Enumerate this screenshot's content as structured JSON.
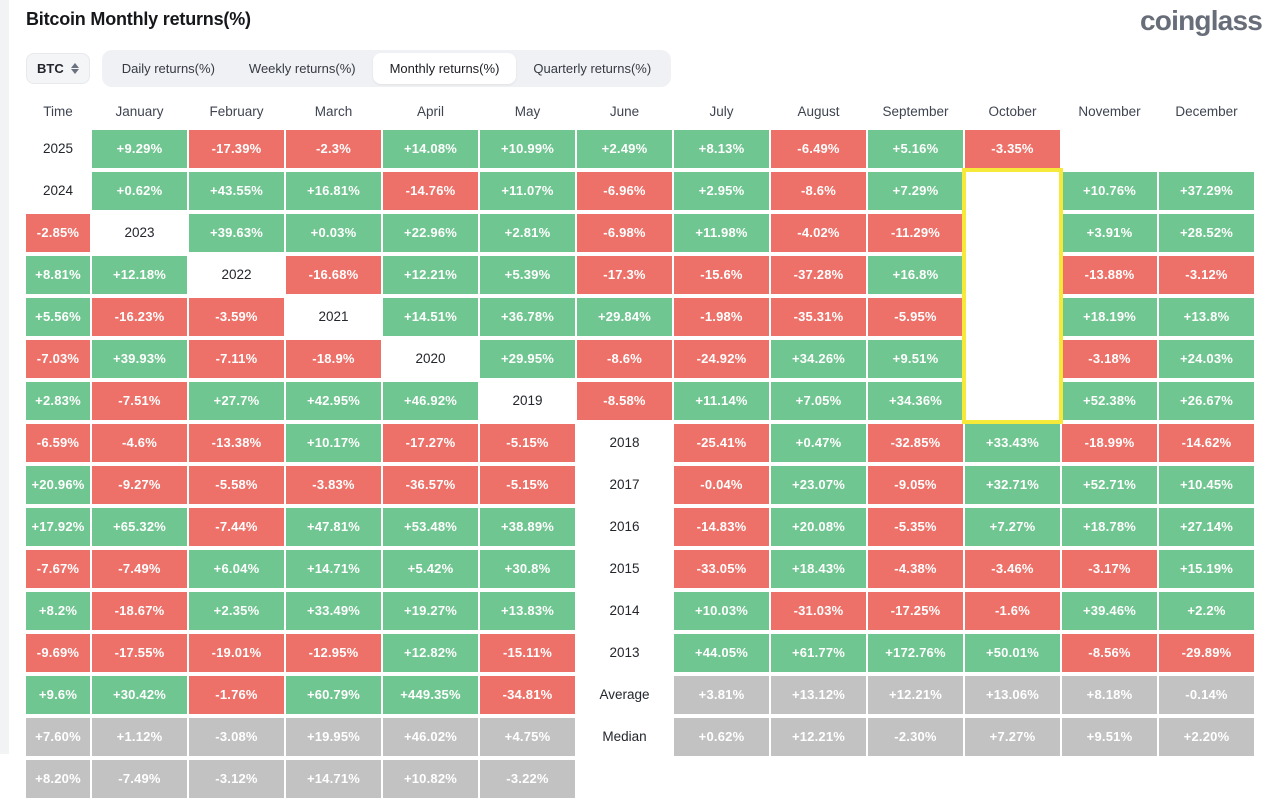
{
  "page": {
    "title": "Bitcoin Monthly returns(%)",
    "logo": "coinglass"
  },
  "controls": {
    "symbol_selector": {
      "label": "BTC",
      "icon": "sort-arrows-icon"
    },
    "tabs": [
      {
        "label": "Daily returns(%)",
        "active": false
      },
      {
        "label": "Weekly returns(%)",
        "active": false
      },
      {
        "label": "Monthly returns(%)",
        "active": true
      },
      {
        "label": "Quarterly returns(%)",
        "active": false
      }
    ]
  },
  "colors": {
    "positive": "#70c690",
    "negative": "#ee7169",
    "neutral": "#c2c2c2",
    "highlight": "#f6e93a"
  },
  "chart_data": {
    "type": "heatmap",
    "title": "Bitcoin Monthly returns(%)",
    "columns": [
      "Time",
      "January",
      "February",
      "March",
      "April",
      "May",
      "June",
      "July",
      "August",
      "September",
      "October",
      "November",
      "December"
    ],
    "rows": [
      {
        "label": "2025",
        "values": [
          "+9.29%",
          "-17.39%",
          "-2.3%",
          "+14.08%",
          "+10.99%",
          "+2.49%",
          "+8.13%",
          "-6.49%",
          "+5.16%",
          "-3.35%",
          "",
          ""
        ]
      },
      {
        "label": "2024",
        "values": [
          "+0.62%",
          "+43.55%",
          "+16.81%",
          "-14.76%",
          "+11.07%",
          "-6.96%",
          "+2.95%",
          "-8.6%",
          "+7.29%",
          "+10.76%",
          "+37.29%",
          "-2.85%"
        ]
      },
      {
        "label": "2023",
        "values": [
          "+39.63%",
          "+0.03%",
          "+22.96%",
          "+2.81%",
          "-6.98%",
          "+11.98%",
          "-4.02%",
          "-11.29%",
          "+3.91%",
          "+28.52%",
          "+8.81%",
          "+12.18%"
        ]
      },
      {
        "label": "2022",
        "values": [
          "-16.68%",
          "+12.21%",
          "+5.39%",
          "-17.3%",
          "-15.6%",
          "-37.28%",
          "+16.8%",
          "-13.88%",
          "-3.12%",
          "+5.56%",
          "-16.23%",
          "-3.59%"
        ]
      },
      {
        "label": "2021",
        "values": [
          "+14.51%",
          "+36.78%",
          "+29.84%",
          "-1.98%",
          "-35.31%",
          "-5.95%",
          "+18.19%",
          "+13.8%",
          "-7.03%",
          "+39.93%",
          "-7.11%",
          "-18.9%"
        ]
      },
      {
        "label": "2020",
        "values": [
          "+29.95%",
          "-8.6%",
          "-24.92%",
          "+34.26%",
          "+9.51%",
          "-3.18%",
          "+24.03%",
          "+2.83%",
          "-7.51%",
          "+27.7%",
          "+42.95%",
          "+46.92%"
        ]
      },
      {
        "label": "2019",
        "values": [
          "-8.58%",
          "+11.14%",
          "+7.05%",
          "+34.36%",
          "+52.38%",
          "+26.67%",
          "-6.59%",
          "-4.6%",
          "-13.38%",
          "+10.17%",
          "-17.27%",
          "-5.15%"
        ]
      },
      {
        "label": "2018",
        "values": [
          "-25.41%",
          "+0.47%",
          "-32.85%",
          "+33.43%",
          "-18.99%",
          "-14.62%",
          "+20.96%",
          "-9.27%",
          "-5.58%",
          "-3.83%",
          "-36.57%",
          "-5.15%"
        ]
      },
      {
        "label": "2017",
        "values": [
          "-0.04%",
          "+23.07%",
          "-9.05%",
          "+32.71%",
          "+52.71%",
          "+10.45%",
          "+17.92%",
          "+65.32%",
          "-7.44%",
          "+47.81%",
          "+53.48%",
          "+38.89%"
        ]
      },
      {
        "label": "2016",
        "values": [
          "-14.83%",
          "+20.08%",
          "-5.35%",
          "+7.27%",
          "+18.78%",
          "+27.14%",
          "-7.67%",
          "-7.49%",
          "+6.04%",
          "+14.71%",
          "+5.42%",
          "+30.8%"
        ]
      },
      {
        "label": "2015",
        "values": [
          "-33.05%",
          "+18.43%",
          "-4.38%",
          "-3.46%",
          "-3.17%",
          "+15.19%",
          "+8.2%",
          "-18.67%",
          "+2.35%",
          "+33.49%",
          "+19.27%",
          "+13.83%"
        ]
      },
      {
        "label": "2014",
        "values": [
          "+10.03%",
          "-31.03%",
          "-17.25%",
          "-1.6%",
          "+39.46%",
          "+2.2%",
          "-9.69%",
          "-17.55%",
          "-19.01%",
          "-12.95%",
          "+12.82%",
          "-15.11%"
        ]
      },
      {
        "label": "2013",
        "values": [
          "+44.05%",
          "+61.77%",
          "+172.76%",
          "+50.01%",
          "-8.56%",
          "-29.89%",
          "+9.6%",
          "+30.42%",
          "-1.76%",
          "+60.79%",
          "+449.35%",
          "-34.81%"
        ]
      },
      {
        "label": "Average",
        "style": "neutral",
        "values": [
          "+3.81%",
          "+13.12%",
          "+12.21%",
          "+13.06%",
          "+8.18%",
          "-0.14%",
          "+7.60%",
          "+1.12%",
          "-3.08%",
          "+19.95%",
          "+46.02%",
          "+4.75%"
        ]
      },
      {
        "label": "Median",
        "style": "neutral",
        "values": [
          "+0.62%",
          "+12.21%",
          "-2.30%",
          "+7.27%",
          "+9.51%",
          "+2.20%",
          "+8.20%",
          "-7.49%",
          "-3.12%",
          "+14.71%",
          "+10.82%",
          "-3.22%"
        ]
      }
    ],
    "highlight": {
      "column": "October",
      "rows": [
        "2024",
        "2023",
        "2022",
        "2021",
        "2020",
        "2019"
      ]
    },
    "legend_position": "none",
    "grid": false
  }
}
